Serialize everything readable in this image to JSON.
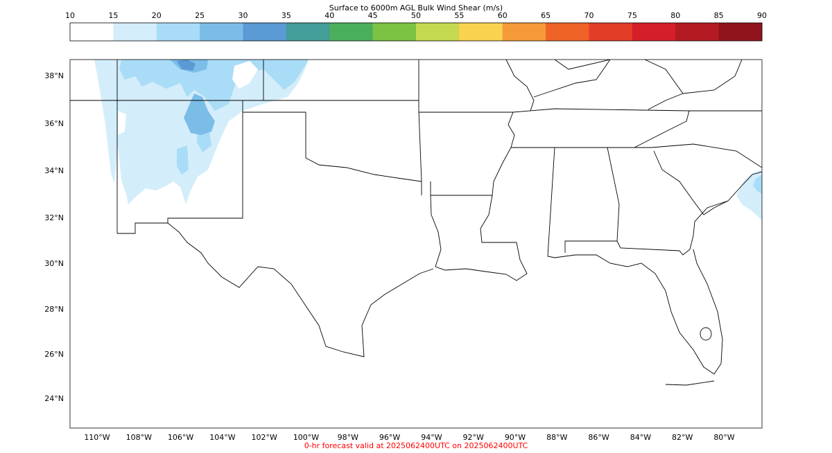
{
  "colorbar": {
    "title": "Surface to 6000m AGL Bulk Wind Shear (m/s)",
    "ticks": [
      "10",
      "15",
      "20",
      "25",
      "30",
      "35",
      "40",
      "45",
      "50",
      "55",
      "60",
      "65",
      "70",
      "75",
      "80",
      "85",
      "90"
    ],
    "colors": [
      "#ffffff",
      "#d4edfb",
      "#a9dcf7",
      "#7cbde8",
      "#5a9ad5",
      "#439d99",
      "#4aae5d",
      "#7cc243",
      "#c4d94f",
      "#f9d24f",
      "#f59a38",
      "#ef6228",
      "#e23d28",
      "#d41f2a",
      "#b31a21",
      "#8f141c"
    ]
  },
  "map": {
    "lat_labels": [
      "38°N",
      "36°N",
      "34°N",
      "32°N",
      "30°N",
      "28°N",
      "26°N",
      "24°N"
    ],
    "lon_labels": [
      "110°W",
      "108°W",
      "106°W",
      "104°W",
      "102°W",
      "100°W",
      "98°W",
      "96°W",
      "94°W",
      "92°W",
      "90°W",
      "88°W",
      "86°W",
      "84°W",
      "82°W",
      "80°W"
    ],
    "border_color": "#000000",
    "shading_colors": {
      "light": "#d4edfb",
      "mid": "#a9dcf7",
      "dark": "#7cbde8",
      "darkest": "#5a9ad5"
    }
  },
  "footer": {
    "text": "0-hr forecast valid at 2025062400UTC on 2025062400UTC",
    "color": "#ff0000"
  }
}
